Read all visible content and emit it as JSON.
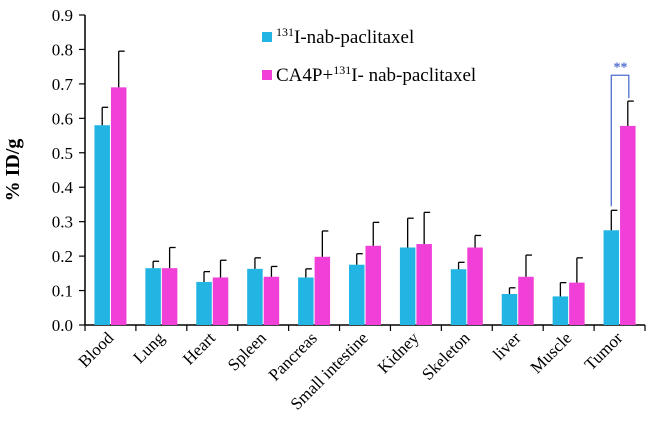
{
  "chart_data": {
    "type": "bar",
    "title": "",
    "xlabel": "",
    "ylabel": "% ID/g",
    "ylim": [
      0,
      0.9
    ],
    "yticks": [
      "0.0",
      "0.1",
      "0.2",
      "0.3",
      "0.4",
      "0.5",
      "0.6",
      "0.7",
      "0.8",
      "0.9"
    ],
    "categories": [
      "Blood",
      "Lung",
      "Heart",
      "Spleen",
      "Pancreas",
      "Small intestine",
      "Kidney",
      "Skeleton",
      "liver",
      "Muscle",
      "Tumor"
    ],
    "series": [
      {
        "name_sup": "131",
        "name_rest": "I-nab-paclitaxel",
        "color": "#22b5e3",
        "values": [
          0.58,
          0.165,
          0.125,
          0.163,
          0.138,
          0.175,
          0.225,
          0.162,
          0.09,
          0.083,
          0.275
        ],
        "errors": [
          0.052,
          0.02,
          0.03,
          0.032,
          0.025,
          0.032,
          0.085,
          0.02,
          0.018,
          0.04,
          0.058
        ]
      },
      {
        "name_pre": "CA4P+",
        "name_sup": "131",
        "name_rest": "I- nab-paclitaxel",
        "color": "#f040d8",
        "values": [
          0.69,
          0.165,
          0.138,
          0.14,
          0.198,
          0.23,
          0.235,
          0.225,
          0.14,
          0.123,
          0.578
        ],
        "errors": [
          0.105,
          0.06,
          0.05,
          0.03,
          0.075,
          0.068,
          0.092,
          0.035,
          0.063,
          0.072,
          0.072
        ]
      }
    ],
    "legend_position": "top-right",
    "annotations": [
      {
        "category": "Tumor",
        "text": "**",
        "color": "#4f6fd0"
      }
    ]
  }
}
